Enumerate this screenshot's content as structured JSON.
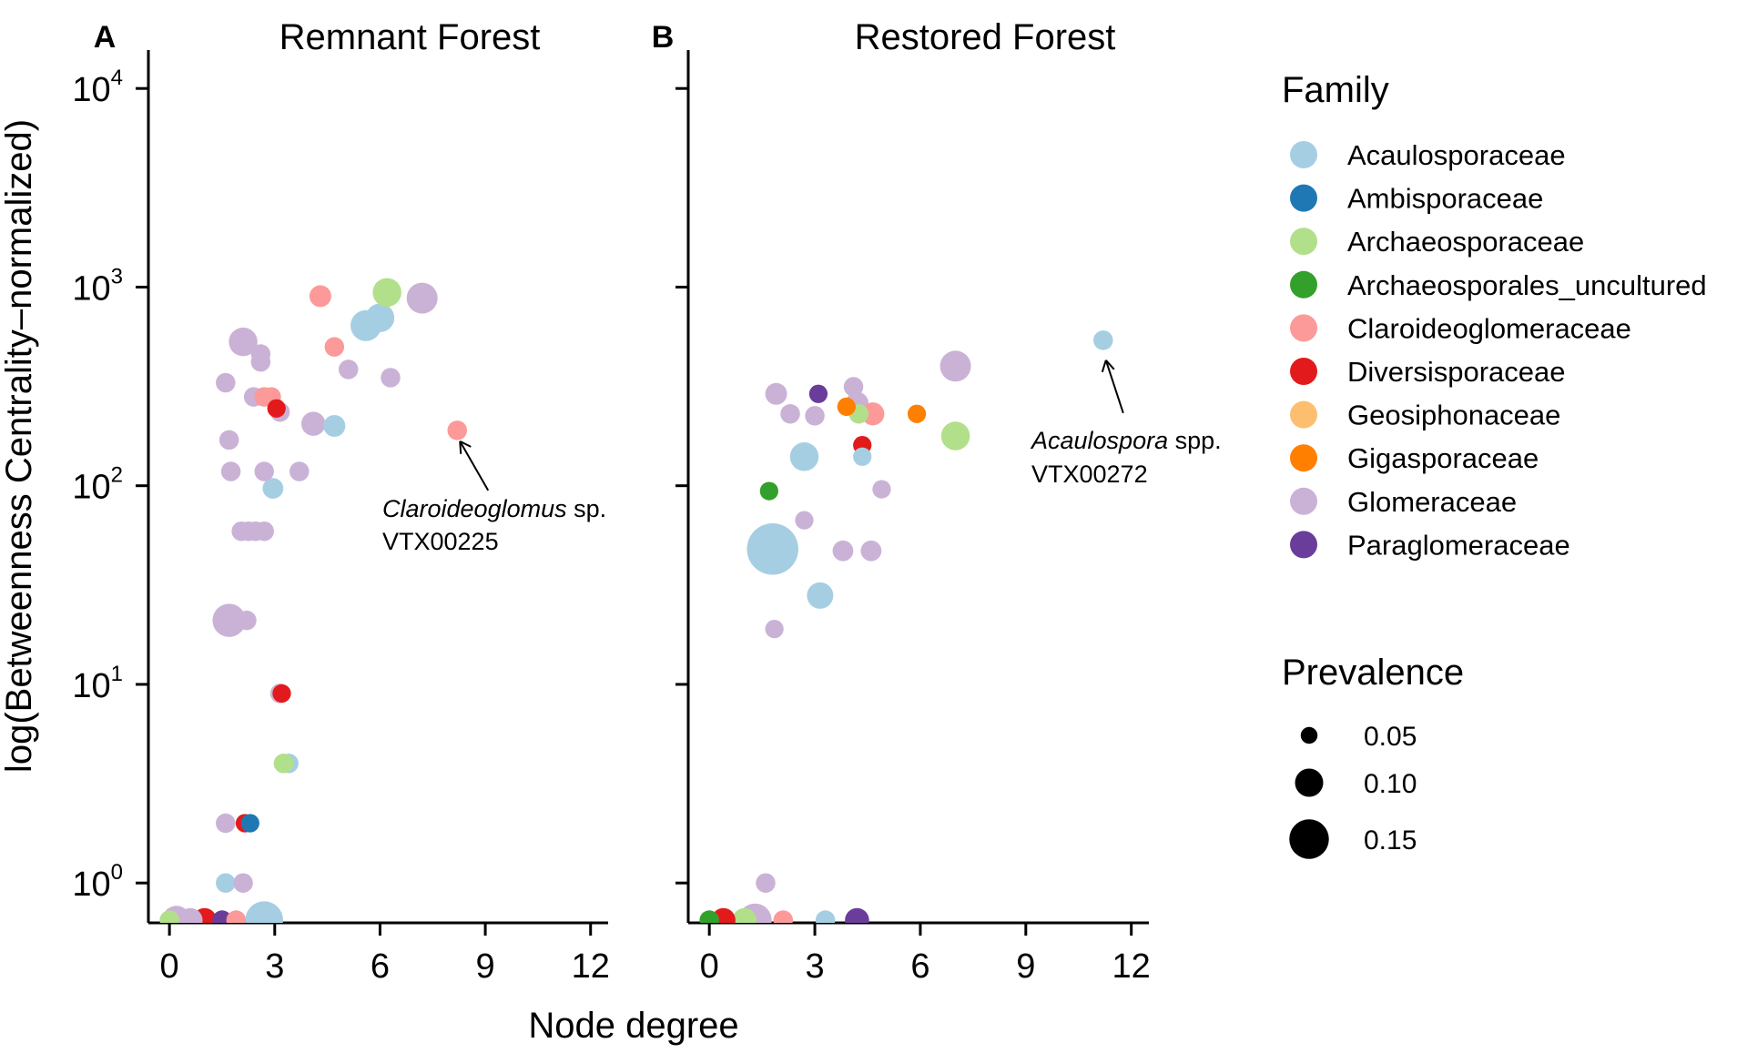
{
  "chart_data": [
    {
      "type": "scatter",
      "panel": "A",
      "title": "Remnant Forest",
      "xlabel": "Node degree",
      "ylabel": "log(Betweenness Centrality–normalized)",
      "xlim": [
        -0.6,
        12.5
      ],
      "ylim": [
        0.6,
        10000
      ],
      "y_scale": "log",
      "x_ticks": [
        "0",
        "3",
        "6",
        "9",
        "12"
      ],
      "y_ticks": [
        {
          "base": "10",
          "exp": "0"
        },
        {
          "base": "10",
          "exp": "1"
        },
        {
          "base": "10",
          "exp": "2"
        },
        {
          "base": "10",
          "exp": "3"
        },
        {
          "base": "10",
          "exp": "4"
        }
      ],
      "annotation": {
        "italic": "Claroideoglomus",
        "rest": " sp.",
        "line2": "VTX00225",
        "x": 8.2,
        "y": 190
      },
      "points": [
        {
          "family": "Acaulosporaceae",
          "x": 5.6,
          "y": 640,
          "prevalence": 0.08
        },
        {
          "family": "Acaulosporaceae",
          "x": 6.0,
          "y": 700,
          "prevalence": 0.07
        },
        {
          "family": "Archaeosporaceae",
          "x": 6.2,
          "y": 940,
          "prevalence": 0.07
        },
        {
          "family": "Glomeraceae",
          "x": 7.2,
          "y": 880,
          "prevalence": 0.08
        },
        {
          "family": "Claroideoglomeraceae",
          "x": 4.3,
          "y": 900,
          "prevalence": 0.04
        },
        {
          "family": "Glomeraceae",
          "x": 2.1,
          "y": 530,
          "prevalence": 0.07
        },
        {
          "family": "Claroideoglomeraceae",
          "x": 4.7,
          "y": 500,
          "prevalence": 0.03
        },
        {
          "family": "Glomeraceae",
          "x": 2.6,
          "y": 460,
          "prevalence": 0.03
        },
        {
          "family": "Glomeraceae",
          "x": 2.6,
          "y": 420,
          "prevalence": 0.03
        },
        {
          "family": "Glomeraceae",
          "x": 5.1,
          "y": 385,
          "prevalence": 0.03
        },
        {
          "family": "Glomeraceae",
          "x": 6.3,
          "y": 350,
          "prevalence": 0.03
        },
        {
          "family": "Glomeraceae",
          "x": 1.6,
          "y": 330,
          "prevalence": 0.03
        },
        {
          "family": "Glomeraceae",
          "x": 2.4,
          "y": 280,
          "prevalence": 0.03
        },
        {
          "family": "Claroideoglomeraceae",
          "x": 2.7,
          "y": 280,
          "prevalence": 0.03
        },
        {
          "family": "Claroideoglomeraceae",
          "x": 2.9,
          "y": 280,
          "prevalence": 0.03
        },
        {
          "family": "Diversisporaceae",
          "x": 3.05,
          "y": 245,
          "prevalence": 0.025
        },
        {
          "family": "Glomeraceae",
          "x": 3.15,
          "y": 235,
          "prevalence": 0.03
        },
        {
          "family": "Glomeraceae",
          "x": 4.1,
          "y": 205,
          "prevalence": 0.05
        },
        {
          "family": "Acaulosporaceae",
          "x": 4.7,
          "y": 200,
          "prevalence": 0.04
        },
        {
          "family": "Claroideoglomeraceae",
          "x": 8.2,
          "y": 190,
          "prevalence": 0.03
        },
        {
          "family": "Glomeraceae",
          "x": 1.7,
          "y": 170,
          "prevalence": 0.03
        },
        {
          "family": "Glomeraceae",
          "x": 1.75,
          "y": 118,
          "prevalence": 0.03
        },
        {
          "family": "Glomeraceae",
          "x": 2.7,
          "y": 118,
          "prevalence": 0.03
        },
        {
          "family": "Glomeraceae",
          "x": 3.7,
          "y": 118,
          "prevalence": 0.03
        },
        {
          "family": "Acaulosporaceae",
          "x": 2.95,
          "y": 97,
          "prevalence": 0.035
        },
        {
          "family": "Glomeraceae",
          "x": 2.05,
          "y": 59,
          "prevalence": 0.03
        },
        {
          "family": "Glomeraceae",
          "x": 2.25,
          "y": 59,
          "prevalence": 0.03
        },
        {
          "family": "Glomeraceae",
          "x": 2.45,
          "y": 59,
          "prevalence": 0.03
        },
        {
          "family": "Glomeraceae",
          "x": 2.7,
          "y": 59,
          "prevalence": 0.03
        },
        {
          "family": "Glomeraceae",
          "x": 2.2,
          "y": 21,
          "prevalence": 0.03
        },
        {
          "family": "Glomeraceae",
          "x": 1.7,
          "y": 21,
          "prevalence": 0.09
        },
        {
          "family": "Diversisporaceae",
          "x": 3.2,
          "y": 9,
          "prevalence": 0.025
        },
        {
          "family": "Glomeraceae",
          "x": 3.15,
          "y": 9,
          "prevalence": 0.03
        },
        {
          "family": "Acaulosporaceae",
          "x": 3.4,
          "y": 4,
          "prevalence": 0.03
        },
        {
          "family": "Archaeosporaceae",
          "x": 3.25,
          "y": 4,
          "prevalence": 0.03
        },
        {
          "family": "Glomeraceae",
          "x": 1.6,
          "y": 2,
          "prevalence": 0.03
        },
        {
          "family": "Diversisporaceae",
          "x": 2.15,
          "y": 2,
          "prevalence": 0.025
        },
        {
          "family": "Ambisporaceae",
          "x": 2.3,
          "y": 2,
          "prevalence": 0.025
        },
        {
          "family": "Acaulosporaceae",
          "x": 1.6,
          "y": 1,
          "prevalence": 0.03
        },
        {
          "family": "Glomeraceae",
          "x": 2.1,
          "y": 1,
          "prevalence": 0.03
        },
        {
          "family": "Acaulosporaceae",
          "x": 2.7,
          "y": 0.62,
          "prevalence": 0.11
        },
        {
          "family": "Diversisporaceae",
          "x": 1.0,
          "y": 0.64,
          "prevalence": 0.05
        },
        {
          "family": "Glomeraceae",
          "x": 0.2,
          "y": 0.6,
          "prevalence": 0.07
        },
        {
          "family": "Glomeraceae",
          "x": 0.6,
          "y": 0.6,
          "prevalence": 0.05
        },
        {
          "family": "Paraglomeraceae",
          "x": 1.5,
          "y": 0.6,
          "prevalence": 0.03
        },
        {
          "family": "Claroideoglomeraceae",
          "x": 1.9,
          "y": 0.6,
          "prevalence": 0.03
        },
        {
          "family": "Archaeosporaceae",
          "x": 0.0,
          "y": 0.6,
          "prevalence": 0.03
        }
      ]
    },
    {
      "type": "scatter",
      "panel": "B",
      "title": "Restored Forest",
      "xlabel": "Node degree",
      "ylabel": "",
      "xlim": [
        -0.6,
        12.5
      ],
      "ylim": [
        0.6,
        10000
      ],
      "y_scale": "log",
      "x_ticks": [
        "0",
        "3",
        "6",
        "9",
        "12"
      ],
      "annotation": {
        "italic": "Acaulospora",
        "rest": " spp.",
        "line2": "VTX00272",
        "x": 11.2,
        "y": 540
      },
      "points": [
        {
          "family": "Acaulosporaceae",
          "x": 11.2,
          "y": 540,
          "prevalence": 0.03
        },
        {
          "family": "Glomeraceae",
          "x": 7.0,
          "y": 400,
          "prevalence": 0.08
        },
        {
          "family": "Glomeraceae",
          "x": 1.9,
          "y": 290,
          "prevalence": 0.04
        },
        {
          "family": "Paraglomeraceae",
          "x": 3.1,
          "y": 290,
          "prevalence": 0.025
        },
        {
          "family": "Glomeraceae",
          "x": 4.1,
          "y": 315,
          "prevalence": 0.03
        },
        {
          "family": "Glomeraceae",
          "x": 4.2,
          "y": 260,
          "prevalence": 0.045
        },
        {
          "family": "Gigasporaceae",
          "x": 3.9,
          "y": 250,
          "prevalence": 0.025
        },
        {
          "family": "Claroideoglomeraceae",
          "x": 4.65,
          "y": 230,
          "prevalence": 0.045
        },
        {
          "family": "Archaeosporaceae",
          "x": 4.25,
          "y": 230,
          "prevalence": 0.03
        },
        {
          "family": "Glomeraceae",
          "x": 2.3,
          "y": 230,
          "prevalence": 0.03
        },
        {
          "family": "Glomeraceae",
          "x": 3.0,
          "y": 225,
          "prevalence": 0.03
        },
        {
          "family": "Gigasporaceae",
          "x": 5.9,
          "y": 230,
          "prevalence": 0.025
        },
        {
          "family": "Archaeosporaceae",
          "x": 7.0,
          "y": 178,
          "prevalence": 0.07
        },
        {
          "family": "Diversisporaceae",
          "x": 4.35,
          "y": 160,
          "prevalence": 0.025
        },
        {
          "family": "Acaulosporaceae",
          "x": 4.35,
          "y": 140,
          "prevalence": 0.025
        },
        {
          "family": "Acaulosporaceae",
          "x": 2.7,
          "y": 140,
          "prevalence": 0.07
        },
        {
          "family": "Glomeraceae",
          "x": 4.9,
          "y": 96,
          "prevalence": 0.025
        },
        {
          "family": "Archaeosporales_uncultured",
          "x": 1.7,
          "y": 94,
          "prevalence": 0.025
        },
        {
          "family": "Glomeraceae",
          "x": 2.7,
          "y": 67,
          "prevalence": 0.025
        },
        {
          "family": "Acaulosporaceae",
          "x": 1.8,
          "y": 48,
          "prevalence": 0.17
        },
        {
          "family": "Glomeraceae",
          "x": 3.8,
          "y": 47,
          "prevalence": 0.035
        },
        {
          "family": "Glomeraceae",
          "x": 4.6,
          "y": 47,
          "prevalence": 0.035
        },
        {
          "family": "Acaulosporaceae",
          "x": 3.15,
          "y": 28,
          "prevalence": 0.06
        },
        {
          "family": "Glomeraceae",
          "x": 1.85,
          "y": 19,
          "prevalence": 0.025
        },
        {
          "family": "Glomeraceae",
          "x": 1.6,
          "y": 1,
          "prevalence": 0.03
        },
        {
          "family": "Glomeraceae",
          "x": 1.3,
          "y": 0.62,
          "prevalence": 0.09
        },
        {
          "family": "Archaeosporaceae",
          "x": 1.0,
          "y": 0.6,
          "prevalence": 0.05
        },
        {
          "family": "Diversisporaceae",
          "x": 0.4,
          "y": 0.6,
          "prevalence": 0.05
        },
        {
          "family": "Archaeosporales_uncultured",
          "x": 0.0,
          "y": 0.6,
          "prevalence": 0.03
        },
        {
          "family": "Claroideoglomeraceae",
          "x": 2.1,
          "y": 0.6,
          "prevalence": 0.03
        },
        {
          "family": "Acaulosporaceae",
          "x": 3.3,
          "y": 0.6,
          "prevalence": 0.03
        },
        {
          "family": "Paraglomeraceae",
          "x": 4.2,
          "y": 0.6,
          "prevalence": 0.05
        }
      ]
    }
  ],
  "legend": {
    "family_title": "Family",
    "families": [
      {
        "name": "Acaulosporaceae",
        "color": "#a6cee3"
      },
      {
        "name": "Ambisporaceae",
        "color": "#1f78b4"
      },
      {
        "name": "Archaeosporaceae",
        "color": "#b2df8a"
      },
      {
        "name": "Archaeosporales_uncultured",
        "color": "#33a02c"
      },
      {
        "name": "Claroideoglomeraceae",
        "color": "#fb9a99"
      },
      {
        "name": "Diversisporaceae",
        "color": "#e31a1c"
      },
      {
        "name": "Geosiphonaceae",
        "color": "#fdbf6f"
      },
      {
        "name": "Gigasporaceae",
        "color": "#ff7f00"
      },
      {
        "name": "Glomeraceae",
        "color": "#cab2d6"
      },
      {
        "name": "Paraglomeraceae",
        "color": "#6a3d9a"
      }
    ],
    "prevalence_title": "Prevalence",
    "prevalence_breaks": [
      {
        "label": "0.05",
        "value": 0.05
      },
      {
        "label": "0.10",
        "value": 0.1
      },
      {
        "label": "0.15",
        "value": 0.15
      }
    ]
  }
}
